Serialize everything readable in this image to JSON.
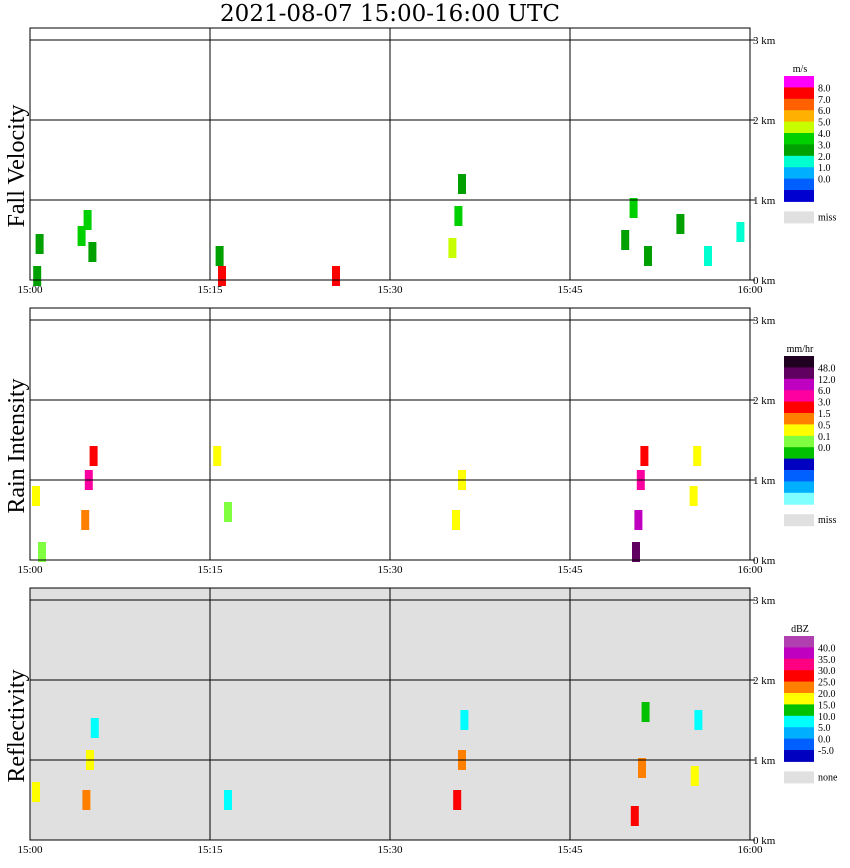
{
  "title": "2021-08-07   15:00-16:00 UTC",
  "chart_data": [
    {
      "type": "heatmap",
      "name": "Fall Velocity",
      "ylabel": "Fall Velocity",
      "x_ticks": [
        "15:00",
        "15:15",
        "15:30",
        "15:45",
        "16:00"
      ],
      "y_ticks": [
        "0 km",
        "1 km",
        "2 km",
        "3 km"
      ],
      "ylim": [
        0,
        3.0
      ],
      "background": "#ffffff",
      "colorbar": {
        "unit": "m/s",
        "labels": [
          "8.0",
          "7.0",
          "6.0",
          "5.0",
          "4.0",
          "3.0",
          "2.0",
          "1.0",
          "0.0"
        ],
        "colors": [
          "#ff00ff",
          "#ff0000",
          "#ff6000",
          "#ffb000",
          "#c8ff00",
          "#00d000",
          "#00a000",
          "#00ffd0",
          "#00b0ff",
          "#0060ff",
          "#0000d0"
        ],
        "missing_label": "miss",
        "missing_color": "#e0e0e0"
      },
      "cells": [
        {
          "t": 0.6,
          "h": 0.05,
          "v": 3.0
        },
        {
          "t": 0.8,
          "h": 0.45,
          "v": 3.5
        },
        {
          "t": 4.3,
          "h": 0.55,
          "v": 4.2
        },
        {
          "t": 4.8,
          "h": 0.75,
          "v": 4.5
        },
        {
          "t": 5.2,
          "h": 0.35,
          "v": 3.8
        },
        {
          "t": 15.8,
          "h": 0.3,
          "v": 3.4
        },
        {
          "t": 16.0,
          "h": 0.05,
          "v": 8.0
        },
        {
          "t": 25.5,
          "h": 0.05,
          "v": 8.0
        },
        {
          "t": 35.2,
          "h": 0.4,
          "v": 5.2
        },
        {
          "t": 35.7,
          "h": 0.8,
          "v": 4.6
        },
        {
          "t": 36.0,
          "h": 1.2,
          "v": 3.6
        },
        {
          "t": 49.6,
          "h": 0.5,
          "v": 3.8
        },
        {
          "t": 50.3,
          "h": 0.9,
          "v": 4.1
        },
        {
          "t": 51.5,
          "h": 0.3,
          "v": 3.3
        },
        {
          "t": 54.2,
          "h": 0.7,
          "v": 3.1
        },
        {
          "t": 56.5,
          "h": 0.3,
          "v": 2.7
        },
        {
          "t": 59.2,
          "h": 0.6,
          "v": 2.3
        }
      ]
    },
    {
      "type": "heatmap",
      "name": "Rain Intensity",
      "ylabel": "Rain Intensity",
      "x_ticks": [
        "15:00",
        "15:15",
        "15:30",
        "15:45",
        "16:00"
      ],
      "y_ticks": [
        "0 km",
        "1 km",
        "2 km",
        "3 km"
      ],
      "ylim": [
        0,
        3.0
      ],
      "background": "#ffffff",
      "colorbar": {
        "unit": "mm/hr",
        "labels": [
          "48.0",
          "12.0",
          "6.0",
          "3.0",
          "1.5",
          "0.5",
          "0.1",
          "0.0"
        ],
        "colors": [
          "#200020",
          "#600060",
          "#c000c0",
          "#ff00a0",
          "#ff0000",
          "#ff8000",
          "#ffff00",
          "#80ff40",
          "#00c000",
          "#0000c0",
          "#0060ff",
          "#00b0ff",
          "#80ffff"
        ],
        "missing_label": "miss",
        "missing_color": "#e0e0e0"
      },
      "cells": [
        {
          "t": 0.5,
          "h": 0.8,
          "v": 0.5
        },
        {
          "t": 1.0,
          "h": 0.1,
          "v": 0.1
        },
        {
          "t": 4.6,
          "h": 0.5,
          "v": 1.5
        },
        {
          "t": 4.9,
          "h": 1.0,
          "v": 6.0
        },
        {
          "t": 5.3,
          "h": 1.3,
          "v": 3.0
        },
        {
          "t": 15.6,
          "h": 1.3,
          "v": 0.5
        },
        {
          "t": 16.5,
          "h": 0.6,
          "v": 0.1
        },
        {
          "t": 35.5,
          "h": 0.5,
          "v": 0.5
        },
        {
          "t": 36.0,
          "h": 1.0,
          "v": 0.5
        },
        {
          "t": 50.5,
          "h": 0.1,
          "v": 48.0
        },
        {
          "t": 50.7,
          "h": 0.5,
          "v": 12.0
        },
        {
          "t": 50.9,
          "h": 1.0,
          "v": 6.0
        },
        {
          "t": 51.2,
          "h": 1.3,
          "v": 3.0
        },
        {
          "t": 55.3,
          "h": 0.8,
          "v": 0.5
        },
        {
          "t": 55.6,
          "h": 1.3,
          "v": 0.5
        }
      ]
    },
    {
      "type": "heatmap",
      "name": "Reflectivity",
      "ylabel": "Reflectivity",
      "x_ticks": [
        "15:00",
        "15:15",
        "15:30",
        "15:45",
        "16:00"
      ],
      "y_ticks": [
        "0 km",
        "1 km",
        "2 km",
        "3 km"
      ],
      "ylim": [
        0,
        3.0
      ],
      "background": "#e0e0e0",
      "colorbar": {
        "unit": "dBZ",
        "labels": [
          "40.0",
          "35.0",
          "30.0",
          "25.0",
          "20.0",
          "15.0",
          "10.0",
          "5.0",
          "0.0",
          "-5.0"
        ],
        "colors": [
          "#b040b0",
          "#c000c0",
          "#ff0080",
          "#ff0000",
          "#ff8000",
          "#ffff00",
          "#00c000",
          "#00ffff",
          "#00b0ff",
          "#0060ff",
          "#0000c0"
        ],
        "missing_label": "none",
        "missing_color": "#e0e0e0"
      },
      "cells": [
        {
          "t": 0.5,
          "h": 0.6,
          "v": 20.0
        },
        {
          "t": 4.7,
          "h": 0.5,
          "v": 25.0
        },
        {
          "t": 5.0,
          "h": 1.0,
          "v": 20.0
        },
        {
          "t": 5.4,
          "h": 1.4,
          "v": 10.0
        },
        {
          "t": 16.5,
          "h": 0.5,
          "v": 10.0
        },
        {
          "t": 35.6,
          "h": 0.5,
          "v": 30.0
        },
        {
          "t": 36.0,
          "h": 1.0,
          "v": 25.0
        },
        {
          "t": 36.2,
          "h": 1.5,
          "v": 10.0
        },
        {
          "t": 50.4,
          "h": 0.3,
          "v": 30.0
        },
        {
          "t": 51.0,
          "h": 0.9,
          "v": 25.0
        },
        {
          "t": 51.3,
          "h": 1.6,
          "v": 15.0
        },
        {
          "t": 55.4,
          "h": 0.8,
          "v": 20.0
        },
        {
          "t": 55.7,
          "h": 1.5,
          "v": 10.0
        }
      ]
    }
  ]
}
